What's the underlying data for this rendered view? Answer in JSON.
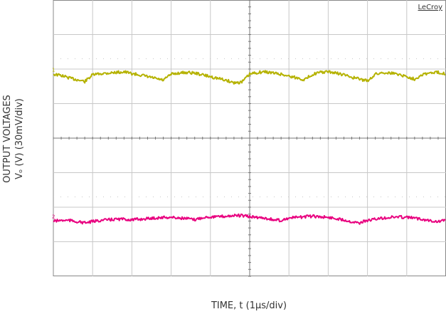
{
  "brand": "LeCroy",
  "colors": {
    "frame": "#333333",
    "grid": "#c8c8c8",
    "trace1": "#b5b200",
    "trace2": "#e8007f"
  },
  "chart_data": {
    "type": "line",
    "ylabel_line1": "OUTPUT VOLTAGES",
    "ylabel_line2": "Vₒ (V) (30mV/div)",
    "xlabel": "TIME, t (1µs/div)",
    "grid": true,
    "divisions": {
      "x": 10,
      "y": 8
    },
    "xlim": [
      0,
      10
    ],
    "x": [
      0,
      0.2,
      0.4,
      0.6,
      0.8,
      1.0,
      1.2,
      1.4,
      1.6,
      1.8,
      2.0,
      2.2,
      2.4,
      2.6,
      2.8,
      3.0,
      3.2,
      3.4,
      3.6,
      3.8,
      4.0,
      4.2,
      4.4,
      4.6,
      4.8,
      5.0,
      5.2,
      5.4,
      5.6,
      5.8,
      6.0,
      6.2,
      6.4,
      6.6,
      6.8,
      7.0,
      7.2,
      7.4,
      7.6,
      7.8,
      8.0,
      8.2,
      8.4,
      8.6,
      8.8,
      9.0,
      9.2,
      9.4,
      9.6,
      9.8,
      10.0
    ],
    "series": [
      {
        "channel": "1",
        "values": [
          0.0,
          -0.1,
          -0.3,
          -0.45,
          -0.6,
          -0.05,
          0.05,
          0.1,
          0.15,
          0.2,
          0.05,
          -0.05,
          -0.2,
          -0.35,
          -0.5,
          0.0,
          0.1,
          0.15,
          0.1,
          -0.05,
          -0.2,
          -0.35,
          -0.5,
          -0.7,
          -0.65,
          0.0,
          0.15,
          0.2,
          0.1,
          0.0,
          -0.15,
          -0.3,
          -0.45,
          0.0,
          0.15,
          0.2,
          0.1,
          -0.05,
          -0.25,
          -0.4,
          -0.55,
          0.0,
          0.15,
          0.1,
          0.0,
          -0.2,
          -0.4,
          0.0,
          0.1,
          0.15,
          0.05
        ]
      },
      {
        "channel": "2",
        "values": [
          0.0,
          0.05,
          0.05,
          -0.05,
          -0.15,
          -0.05,
          0.05,
          0.1,
          0.15,
          0.15,
          0.1,
          0.15,
          0.2,
          0.25,
          0.3,
          0.3,
          0.25,
          0.2,
          0.1,
          0.3,
          0.35,
          0.35,
          0.4,
          0.45,
          0.45,
          0.35,
          0.3,
          0.25,
          0.1,
          0.05,
          0.25,
          0.3,
          0.35,
          0.4,
          0.35,
          0.3,
          0.2,
          0.1,
          -0.05,
          -0.15,
          0.05,
          0.15,
          0.25,
          0.3,
          0.35,
          0.3,
          0.25,
          0.15,
          0.05,
          -0.05,
          0.1
        ]
      }
    ],
    "markers": [
      "1",
      "2"
    ]
  }
}
